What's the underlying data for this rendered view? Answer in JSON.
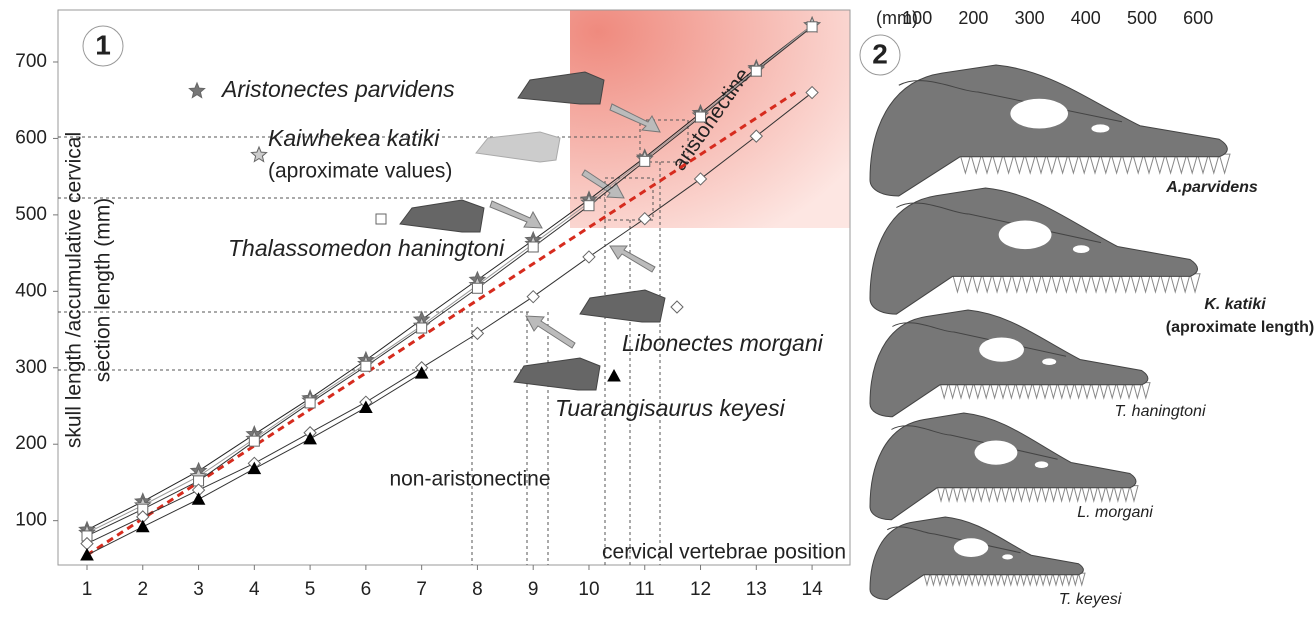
{
  "chart_data": {
    "type": "line",
    "xlabel": "cervical vertebrae position",
    "ylabel": [
      "skull length /accumulative cervical",
      "section length (mm)"
    ],
    "x": [
      1,
      2,
      3,
      4,
      5,
      6,
      7,
      8,
      9,
      10,
      11,
      12,
      13,
      14
    ],
    "xlim": [
      0.48,
      14.68
    ],
    "ylim": [
      42,
      768
    ],
    "xticks": [
      1,
      2,
      3,
      4,
      5,
      6,
      7,
      8,
      9,
      10,
      11,
      12,
      13,
      14
    ],
    "yticks": [
      100,
      200,
      300,
      400,
      500,
      600,
      700
    ],
    "series": [
      {
        "name": "Aristonectes parvidens",
        "color": "#222222",
        "marker": "star",
        "marker_color": "#777777",
        "values": [
          88,
          125,
          165,
          213,
          260,
          310,
          363,
          415,
          467,
          520,
          575,
          633,
          692,
          748
        ]
      },
      {
        "name": "Kaiwhekea katiki",
        "note": "(aproximate values)",
        "color": "#999999",
        "marker": "star",
        "marker_color": "#cccccc",
        "values": [
          84,
          120,
          158,
          207,
          257,
          305,
          355,
          408,
          462,
          516,
          573,
          630,
          690,
          748
        ]
      },
      {
        "name": "Thalassomedon haningtoni",
        "color": "#333333",
        "marker": "square",
        "marker_color": "#ffffff",
        "values": [
          80,
          115,
          152,
          204,
          254,
          302,
          352,
          404,
          458,
          512,
          570,
          628,
          688,
          746
        ]
      },
      {
        "name": "Libonectes morgani",
        "color": "#333333",
        "marker": "diamond",
        "marker_color": "#ffffff",
        "values": [
          70,
          105,
          140,
          175,
          215,
          255,
          300,
          345,
          393,
          445,
          495,
          547,
          603,
          660
        ]
      },
      {
        "name": "Tuarangisaurus keyesi",
        "color": "#333333",
        "marker": "triangle",
        "marker_color": "#000000",
        "values": [
          55,
          92,
          128,
          168,
          207,
          248,
          293,
          null,
          null,
          null,
          null,
          null,
          null,
          null
        ]
      }
    ],
    "trend": {
      "x": [
        1,
        13.7
      ],
      "values": [
        55,
        660
      ],
      "color": "#d62b1e"
    },
    "annotations": [
      "aristonectine",
      "non-aristonectine"
    ]
  },
  "panel_labels": [
    "1",
    "2"
  ],
  "scale": {
    "unit": "(mm)",
    "ticks": [
      100,
      200,
      300,
      400,
      500,
      600
    ]
  },
  "skulls": [
    [
      "A.parvidens"
    ],
    [
      "K. katiki",
      "(aproximate length)"
    ],
    [
      "T. haningtoni"
    ],
    [
      "L. morgani"
    ],
    [
      "T. keyesi"
    ]
  ]
}
